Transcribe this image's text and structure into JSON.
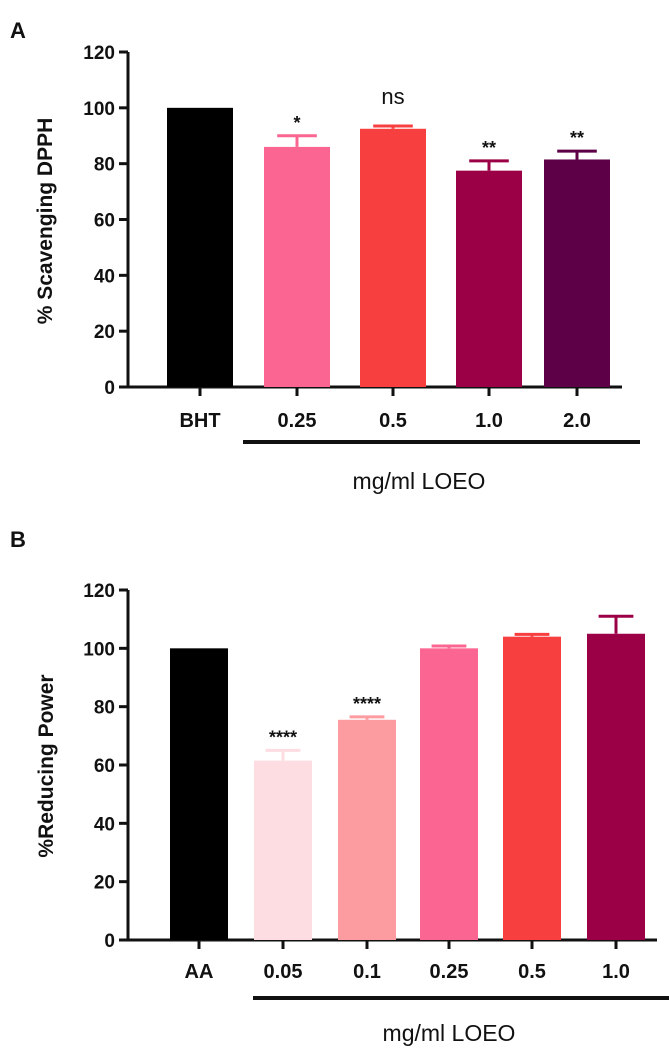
{
  "chart_data": [
    {
      "panel": "A",
      "type": "bar",
      "ylabel": "% Scavenging DPPH",
      "xlabel": "",
      "ylim": [
        0,
        120
      ],
      "yticks": [
        0,
        20,
        40,
        60,
        80,
        100,
        120
      ],
      "categories": [
        "BHT",
        "0.25",
        "0.5",
        "1.0",
        "2.0"
      ],
      "values": [
        100,
        86,
        92.5,
        77.5,
        81.5
      ],
      "errors": [
        0,
        4,
        1,
        3.5,
        3
      ],
      "colors": [
        "#000000",
        "#fb6591",
        "#f83f40",
        "#9b0046",
        "#5e0048"
      ],
      "annotations": [
        "",
        "*",
        "ns",
        "**",
        "**"
      ],
      "group_label": "mg/ml LOEO",
      "grid": false
    },
    {
      "panel": "B",
      "type": "bar",
      "ylabel": "%Reducing Power",
      "xlabel": "",
      "ylim": [
        0,
        120
      ],
      "yticks": [
        0,
        20,
        40,
        60,
        80,
        100,
        120
      ],
      "categories": [
        "AA",
        "0.05",
        "0.1",
        "0.25",
        "0.5",
        "1.0"
      ],
      "values": [
        100,
        61.5,
        75.5,
        100,
        104,
        105
      ],
      "errors": [
        0,
        3.5,
        1,
        0.8,
        0.8,
        6
      ],
      "colors": [
        "#000000",
        "#fddde2",
        "#fc9ba0",
        "#fb6591",
        "#f83f40",
        "#9b0046"
      ],
      "annotations": [
        "",
        "****",
        "****",
        "",
        "",
        ""
      ],
      "group_label": "mg/ml LOEO",
      "grid": false
    }
  ]
}
